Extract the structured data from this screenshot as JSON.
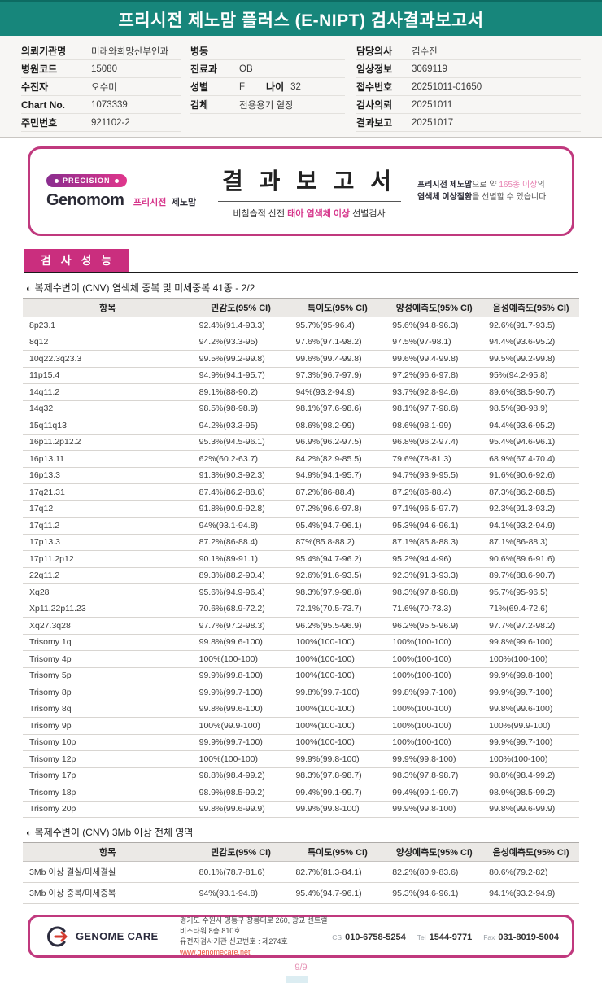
{
  "title_bar": {
    "title": "프리시전 제노맘 플러스 (E-NIPT) 검사결과보고서"
  },
  "patient": {
    "columns": [
      {
        "rows": [
          {
            "label": "의뢰기관명",
            "value": "미래와희망산부인과"
          },
          {
            "label": "병원코드",
            "value": "15080"
          },
          {
            "label": "수진자",
            "value": "오수미"
          },
          {
            "label": "Chart No.",
            "value": "1073339"
          },
          {
            "label": "주민번호",
            "value": "921102-2"
          }
        ]
      },
      {
        "rows": [
          {
            "label": "병동",
            "value": ""
          },
          {
            "label": "진료과",
            "value": "OB"
          },
          {
            "label": "성별",
            "value": "F",
            "label2": "나이",
            "value2": "32"
          },
          {
            "label": "검체",
            "value": "전용용기 혈장"
          }
        ]
      },
      {
        "rows": [
          {
            "label": "담당의사",
            "value": "김수진"
          },
          {
            "label": "임상정보",
            "value": "3069119"
          },
          {
            "label": "접수번호",
            "value": "20251011-01650"
          },
          {
            "label": "검사의뢰",
            "value": "20251011"
          },
          {
            "label": "결과보고",
            "value": "20251017"
          }
        ]
      }
    ]
  },
  "report_box": {
    "badge": "PRECISION",
    "brand": "Genomom",
    "brand_kr_accent": "프리시전",
    "brand_kr": "제노맘",
    "title": "결 과 보 고 서",
    "subtitle_pre": "비침습적 산전 ",
    "subtitle_accent": "태아 염색체 이상",
    "subtitle_post": " 선별검사",
    "right_line1_bold": "프리시전 제노맘",
    "right_line1_mid": "으로 약 ",
    "right_line1_accent": "165종 이상",
    "right_line1_end": "의",
    "right_line2_bold": "염색체 이상질환",
    "right_line2_end": "을 선별할 수 있습니다"
  },
  "section": {
    "label": "검 사 성 능"
  },
  "perf_table": {
    "bullet": "◐",
    "title": "복제수변이 (CNV) 염색체 중복 및 미세중복 41종 - 2/2",
    "headers": [
      "항목",
      "민감도(95% CI)",
      "특이도(95% CI)",
      "양성예측도(95% CI)",
      "음성예측도(95% CI)"
    ],
    "rows": [
      [
        "8p23.1",
        "92.4%(91.4-93.3)",
        "95.7%(95-96.4)",
        "95.6%(94.8-96.3)",
        "92.6%(91.7-93.5)"
      ],
      [
        "8q12",
        "94.2%(93.3-95)",
        "97.6%(97.1-98.2)",
        "97.5%(97-98.1)",
        "94.4%(93.6-95.2)"
      ],
      [
        "10q22.3q23.3",
        "99.5%(99.2-99.8)",
        "99.6%(99.4-99.8)",
        "99.6%(99.4-99.8)",
        "99.5%(99.2-99.8)"
      ],
      [
        "11p15.4",
        "94.9%(94.1-95.7)",
        "97.3%(96.7-97.9)",
        "97.2%(96.6-97.8)",
        "95%(94.2-95.8)"
      ],
      [
        "14q11.2",
        "89.1%(88-90.2)",
        "94%(93.2-94.9)",
        "93.7%(92.8-94.6)",
        "89.6%(88.5-90.7)"
      ],
      [
        "14q32",
        "98.5%(98-98.9)",
        "98.1%(97.6-98.6)",
        "98.1%(97.7-98.6)",
        "98.5%(98-98.9)"
      ],
      [
        "15q11q13",
        "94.2%(93.3-95)",
        "98.6%(98.2-99)",
        "98.6%(98.1-99)",
        "94.4%(93.6-95.2)"
      ],
      [
        "16p11.2p12.2",
        "95.3%(94.5-96.1)",
        "96.9%(96.2-97.5)",
        "96.8%(96.2-97.4)",
        "95.4%(94.6-96.1)"
      ],
      [
        "16p13.11",
        "62%(60.2-63.7)",
        "84.2%(82.9-85.5)",
        "79.6%(78-81.3)",
        "68.9%(67.4-70.4)"
      ],
      [
        "16p13.3",
        "91.3%(90.3-92.3)",
        "94.9%(94.1-95.7)",
        "94.7%(93.9-95.5)",
        "91.6%(90.6-92.6)"
      ],
      [
        "17q21.31",
        "87.4%(86.2-88.6)",
        "87.2%(86-88.4)",
        "87.2%(86-88.4)",
        "87.3%(86.2-88.5)"
      ],
      [
        "17q12",
        "91.8%(90.9-92.8)",
        "97.2%(96.6-97.8)",
        "97.1%(96.5-97.7)",
        "92.3%(91.3-93.2)"
      ],
      [
        "17q11.2",
        "94%(93.1-94.8)",
        "95.4%(94.7-96.1)",
        "95.3%(94.6-96.1)",
        "94.1%(93.2-94.9)"
      ],
      [
        "17p13.3",
        "87.2%(86-88.4)",
        "87%(85.8-88.2)",
        "87.1%(85.8-88.3)",
        "87.1%(86-88.3)"
      ],
      [
        "17p11.2p12",
        "90.1%(89-91.1)",
        "95.4%(94.7-96.2)",
        "95.2%(94.4-96)",
        "90.6%(89.6-91.6)"
      ],
      [
        "22q11.2",
        "89.3%(88.2-90.4)",
        "92.6%(91.6-93.5)",
        "92.3%(91.3-93.3)",
        "89.7%(88.6-90.7)"
      ],
      [
        "Xq28",
        "95.6%(94.9-96.4)",
        "98.3%(97.9-98.8)",
        "98.3%(97.8-98.8)",
        "95.7%(95-96.5)"
      ],
      [
        "Xp11.22p11.23",
        "70.6%(68.9-72.2)",
        "72.1%(70.5-73.7)",
        "71.6%(70-73.3)",
        "71%(69.4-72.6)"
      ],
      [
        "Xq27.3q28",
        "97.7%(97.2-98.3)",
        "96.2%(95.5-96.9)",
        "96.2%(95.5-96.9)",
        "97.7%(97.2-98.2)"
      ],
      [
        "Trisomy 1q",
        "99.8%(99.6-100)",
        "100%(100-100)",
        "100%(100-100)",
        "99.8%(99.6-100)"
      ],
      [
        "Trisomy 4p",
        "100%(100-100)",
        "100%(100-100)",
        "100%(100-100)",
        "100%(100-100)"
      ],
      [
        "Trisomy 5p",
        "99.9%(99.8-100)",
        "100%(100-100)",
        "100%(100-100)",
        "99.9%(99.8-100)"
      ],
      [
        "Trisomy 8p",
        "99.9%(99.7-100)",
        "99.8%(99.7-100)",
        "99.8%(99.7-100)",
        "99.9%(99.7-100)"
      ],
      [
        "Trisomy 8q",
        "99.8%(99.6-100)",
        "100%(100-100)",
        "100%(100-100)",
        "99.8%(99.6-100)"
      ],
      [
        "Trisomy 9p",
        "100%(99.9-100)",
        "100%(100-100)",
        "100%(100-100)",
        "100%(99.9-100)"
      ],
      [
        "Trisomy 10p",
        "99.9%(99.7-100)",
        "100%(100-100)",
        "100%(100-100)",
        "99.9%(99.7-100)"
      ],
      [
        "Trisomy 12p",
        "100%(100-100)",
        "99.9%(99.8-100)",
        "99.9%(99.8-100)",
        "100%(100-100)"
      ],
      [
        "Trisomy 17p",
        "98.8%(98.4-99.2)",
        "98.3%(97.8-98.7)",
        "98.3%(97.8-98.7)",
        "98.8%(98.4-99.2)"
      ],
      [
        "Trisomy 18p",
        "98.9%(98.5-99.2)",
        "99.4%(99.1-99.7)",
        "99.4%(99.1-99.7)",
        "98.9%(98.5-99.2)"
      ],
      [
        "Trisomy 20p",
        "99.8%(99.6-99.9)",
        "99.9%(99.8-100)",
        "99.9%(99.8-100)",
        "99.8%(99.6-99.9)"
      ]
    ]
  },
  "cnv_table": {
    "bullet": "◐",
    "title": "복제수변이 (CNV) 3Mb 이상 전체 영역",
    "headers": [
      "항목",
      "민감도(95% CI)",
      "특이도(95% CI)",
      "양성예측도(95% CI)",
      "음성예측도(95% CI)"
    ],
    "rows": [
      [
        "3Mb 이상 결실/미세결실",
        "80.1%(78.7-81.6)",
        "82.7%(81.3-84.1)",
        "82.2%(80.9-83.6)",
        "80.6%(79.2-82)"
      ],
      [
        "3Mb 이상 중복/미세중복",
        "94%(93.1-94.8)",
        "95.4%(94.7-96.1)",
        "95.3%(94.6-96.1)",
        "94.1%(93.2-94.9)"
      ]
    ]
  },
  "footer": {
    "logo": "GENOME CARE",
    "address1": "경기도 수원시 영통구 창룡대로 260, 광교 센트럴비즈타워 8층 810호",
    "address2": "유전자검사기관 신고번호 : 제274호",
    "website": "www.genomecare.net",
    "cs_label": "CS",
    "cs": "010-6758-5254",
    "tel_label": "Tel",
    "tel": "1544-9771",
    "fax_label": "Fax",
    "fax": "031-8019-5004"
  },
  "page": {
    "number": "9/9"
  },
  "colors": {
    "teal": "#17867b",
    "magenta_border": "#c0397e",
    "section_magenta": "#ca2e7e",
    "accent_pink": "#d6368b"
  }
}
